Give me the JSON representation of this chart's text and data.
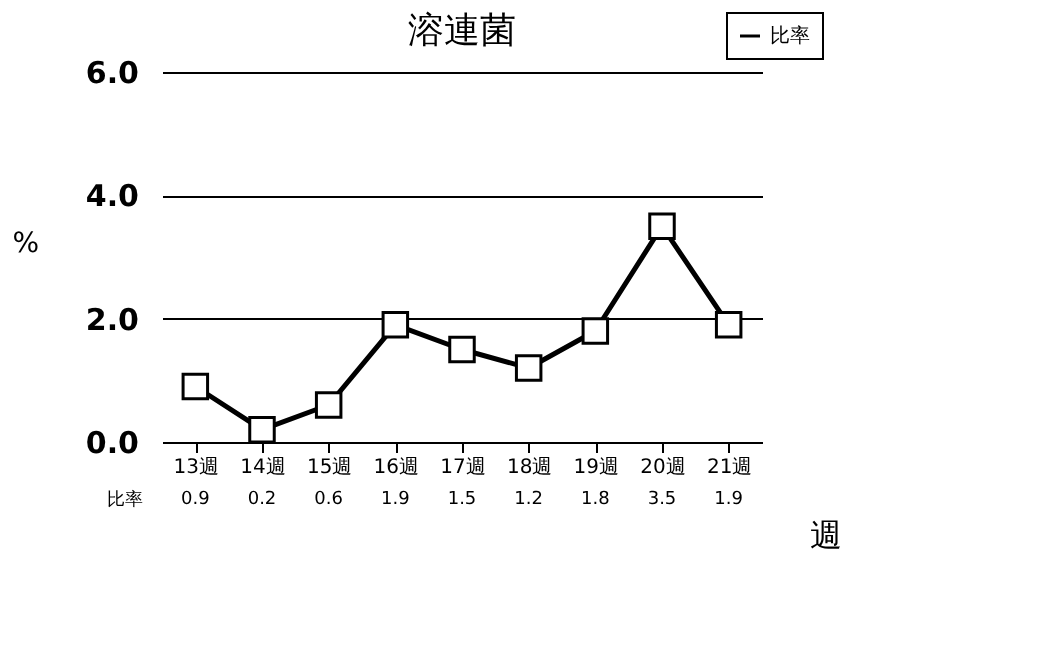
{
  "chart_data": {
    "type": "line",
    "title": "溶連菌",
    "ylabel": "%",
    "xlabel": "週",
    "categories": [
      "13週",
      "14週",
      "15週",
      "16週",
      "17週",
      "18週",
      "19週",
      "20週",
      "21週"
    ],
    "series": [
      {
        "name": "比率",
        "color": "#000000",
        "values": [
          0.9,
          0.2,
          0.6,
          1.9,
          1.5,
          1.2,
          1.8,
          3.5,
          1.9
        ]
      }
    ],
    "ylim": [
      0,
      6
    ],
    "yticks": [
      {
        "value": 0,
        "label": "0.0"
      },
      {
        "value": 2,
        "label": "2.0"
      },
      {
        "value": 4,
        "label": "4.0"
      },
      {
        "value": 6,
        "label": "6.0"
      }
    ],
    "grid": "y",
    "legend": "top right",
    "marker": "square",
    "line_style": "solid",
    "data_labels": true
  }
}
